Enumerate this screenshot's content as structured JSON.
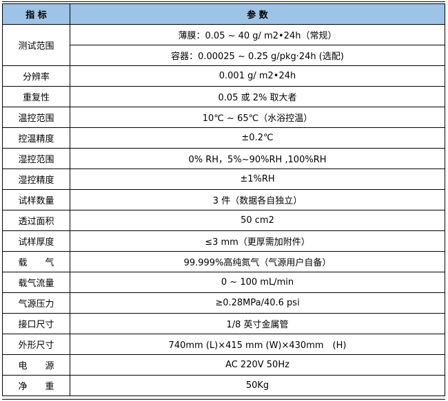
{
  "header": {
    "indicator": "指 标",
    "parameter": "参 数"
  },
  "test_range": {
    "label": "测试范围",
    "film": "薄膜：0.05 ~ 40 g/ m2•24h（常规）",
    "container": "容器：0.00025 ~ 0.25 g/pkg·24h (选配)"
  },
  "rows": [
    {
      "label": "分辨率",
      "value": "0.001 g/ m2•24h"
    },
    {
      "label": "重复性",
      "value": "0.05 或 2%  取大者"
    },
    {
      "label": "温控范围",
      "value": "10℃ ~ 65℃（水浴控温）"
    },
    {
      "label": "控温精度",
      "value": "±0.2℃"
    },
    {
      "label": "湿控范围",
      "value": "0% RH，5%~90%RH ,100%RH"
    },
    {
      "label": "湿控精度",
      "value": "±1%RH"
    },
    {
      "label": "试样数量",
      "value": "3 件（数据各自独立）"
    },
    {
      "label": "透过面积",
      "value": "50 cm2"
    },
    {
      "label": "试样厚度",
      "value": "≤3 mm（更厚需加附件）"
    },
    {
      "label": "载　　气",
      "value": "99.999%高纯氮气（气源用户自备）"
    },
    {
      "label": "载气流量",
      "value": "0 ~ 100 mL/min"
    },
    {
      "label": "气源压力",
      "value": "≥0.28MPa/40.6 psi"
    },
    {
      "label": "接口尺寸",
      "value": "1/8 英寸金属管"
    },
    {
      "label": "外形尺寸",
      "value": "740mm (L)×415 mm (W)×430mm　(H)"
    },
    {
      "label": "电　　源",
      "value": "AC 220V 50Hz"
    },
    {
      "label": "净　　重",
      "value": "50Kg"
    }
  ],
  "colors": {
    "header_bg": "#9dc3e6"
  }
}
